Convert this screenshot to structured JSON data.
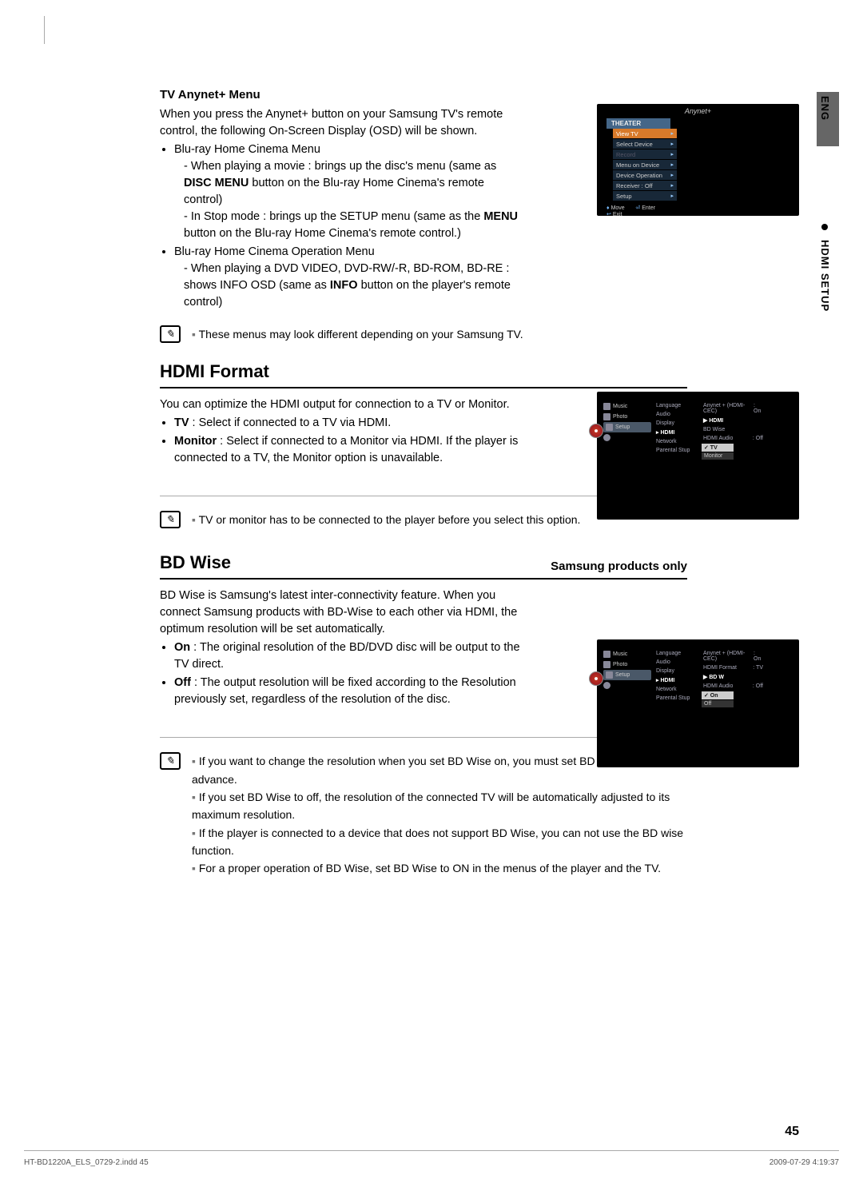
{
  "sidebar": {
    "lang": "ENG",
    "section": "HDMI SETUP"
  },
  "anynet": {
    "heading": "TV Anynet+ Menu",
    "intro": "When you press the Anynet+ button on your Samsung TV's remote control, the following On-Screen Display (OSD) will be shown.",
    "b1": "Blu-ray Home Cinema Menu",
    "b1a_pre": "When playing a movie : brings up the disc's menu (same as ",
    "b1a_bold": "DISC MENU",
    "b1a_post": " button on the Blu-ray Home Cinema's remote control)",
    "b1b_pre": "In Stop mode : brings up the SETUP menu (same as the ",
    "b1b_bold": "MENU",
    "b1b_post": " button on the Blu-ray Home Cinema's remote control.)",
    "b2": "Blu-ray Home Cinema Operation Menu",
    "b2a_pre": "When playing a DVD VIDEO, DVD-RW/-R, BD-ROM, BD-RE : shows INFO OSD (same as ",
    "b2a_bold": "INFO",
    "b2a_post": " button on the player's remote control)",
    "note": "These menus may look different depending on your Samsung TV."
  },
  "hdmi": {
    "title": "HDMI Format",
    "intro": "You can optimize the HDMI output for connection to a TV or Monitor.",
    "tv_bold": "TV",
    "tv_txt": " : Select if connected to a TV via HDMI.",
    "mon_bold": "Monitor",
    "mon_txt": " : Select if connected to a Monitor via HDMI. If the player is connected to a TV, the Monitor option is unavailable.",
    "note": "TV or monitor has to be connected to the player before you select this option."
  },
  "bdwise": {
    "title": "BD Wise",
    "sub": "Samsung products only",
    "intro": "BD Wise is Samsung's latest inter-connectivity feature. When you connect Samsung products with BD-Wise to each other via HDMI, the optimum resolution will be set automatically.",
    "on_bold": "On",
    "on_txt": " : The original resolution of the BD/DVD disc will be output to the TV direct.",
    "off_bold": "Off",
    "off_txt": " : The output resolution will be fixed according to the Resolution previously set, regardless of the resolution of the disc.",
    "notes": [
      "If you want to change the resolution when you set BD Wise on, you must set BD Wise to Off in advance.",
      "If you set BD Wise to off, the resolution of the connected TV will be automatically adjusted to its maximum resolution.",
      "If the player is connected to a device that does not support BD Wise, you can not use the BD wise function.",
      "For a proper operation of BD Wise, set BD Wise to ON in the menus of the player and the TV."
    ]
  },
  "osd1": {
    "logo": "Anynet+",
    "header": "THEATER",
    "items": [
      "View TV",
      "Select Device",
      "Record",
      "Menu on Device",
      "Device Operation",
      "Receiver : Off",
      "Setup"
    ],
    "hi_index": 0,
    "dim_index": 2,
    "foot_move": "Move",
    "foot_enter": "Enter",
    "foot_exit": "Exit"
  },
  "osd_setup_hdmi": {
    "left": [
      "Music",
      "Photo",
      "Setup"
    ],
    "mid": [
      "Language",
      "Audio",
      "Display",
      "HDMI",
      "Network",
      "Parental Stup"
    ],
    "mid_sel": "HDMI",
    "right_items": [
      {
        "k": "Anynet + (HDMI-CEC)",
        "v": ": On"
      },
      {
        "k": "HDMI",
        "v": ""
      },
      {
        "k": "BD Wise",
        "v": ""
      },
      {
        "k": "HDMI Audio",
        "v": ": Off"
      }
    ],
    "right_sel": 1,
    "right_arrow": "▶",
    "popup": [
      "TV",
      "Monitor"
    ],
    "popup_sel": 0,
    "popup_check": "✓"
  },
  "osd_setup_bd": {
    "left": [
      "Music",
      "Photo",
      "Setup"
    ],
    "mid": [
      "Language",
      "Audio",
      "Display",
      "HDMI",
      "Network",
      "Parental Stup"
    ],
    "mid_sel": "HDMI",
    "right_items": [
      {
        "k": "Anynet + (HDMI-CEC)",
        "v": ": On"
      },
      {
        "k": "HDMI Format",
        "v": ": TV"
      },
      {
        "k": "BD W",
        "v": ""
      },
      {
        "k": "HDMI Audio",
        "v": ": Off"
      }
    ],
    "right_sel": 2,
    "right_arrow": "▶",
    "popup": [
      "On",
      "Off"
    ],
    "popup_sel": 0,
    "popup_check": "✓"
  },
  "footer": {
    "page": "45",
    "left": "HT-BD1220A_ELS_0729-2.indd   45",
    "right": "2009-07-29   4:19:37"
  }
}
